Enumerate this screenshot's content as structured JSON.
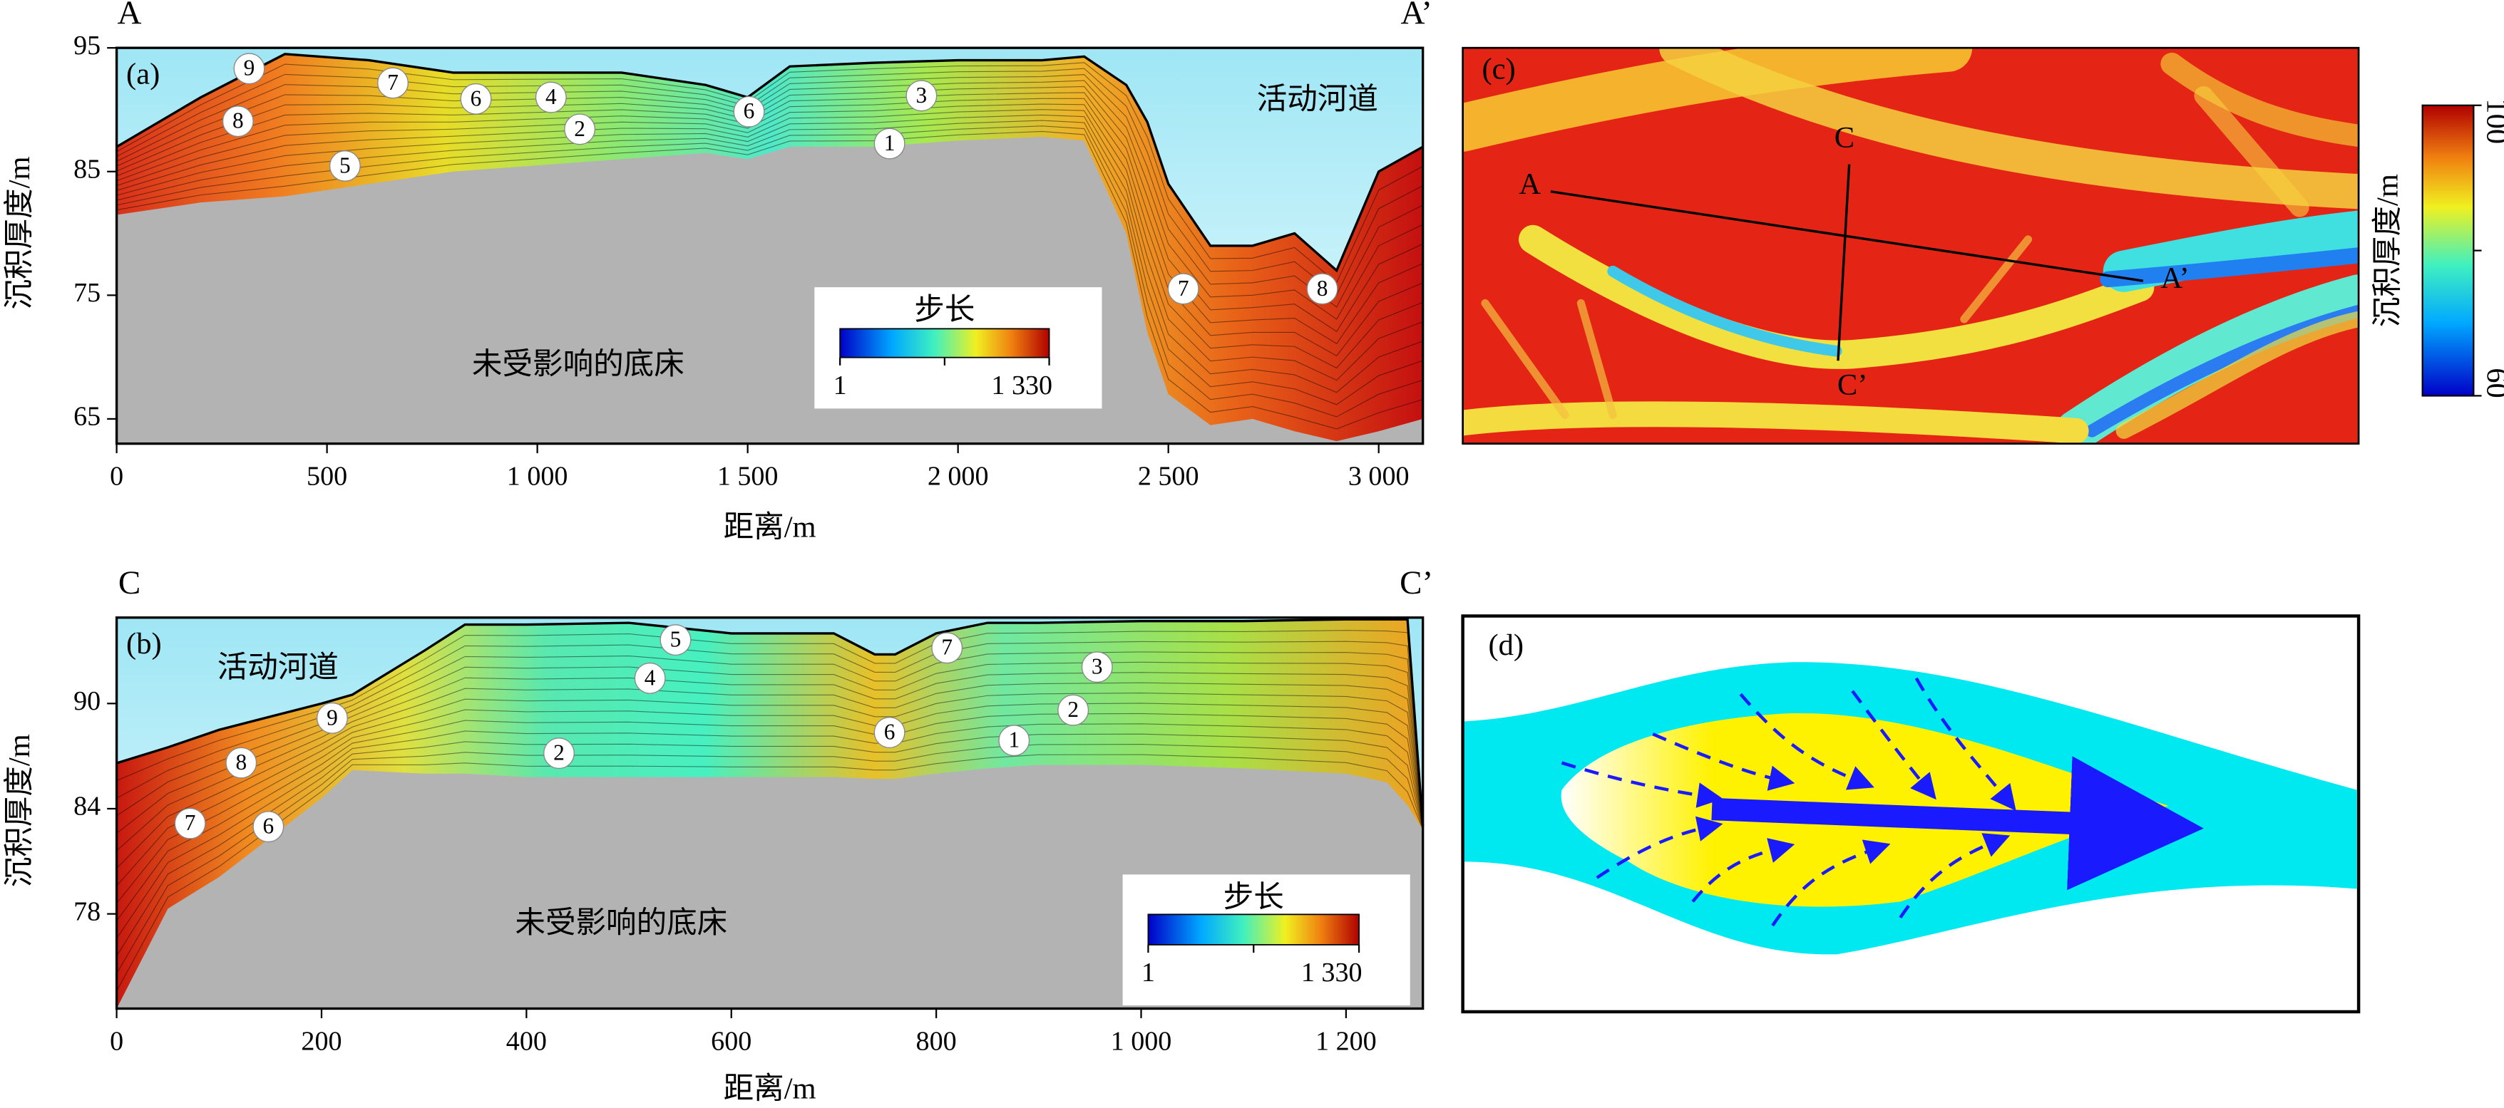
{
  "chart_data": [
    {
      "type": "cross-section",
      "panel_label": "(a)",
      "section_start": "A",
      "section_end": "A’",
      "xlabel": "距离/m",
      "ylabel": "沉积厚度/m",
      "channel_label": "活动河道",
      "xlim": [
        0,
        3105
      ],
      "ylim": [
        63,
        95
      ],
      "xticks": [
        0,
        500,
        {
          "value": 1000,
          "label": "1 000"
        },
        {
          "value": 1500,
          "label": "1 500"
        },
        {
          "value": 2000,
          "label": "2 000"
        },
        {
          "value": 2500,
          "label": "2 500"
        },
        {
          "value": 3000,
          "label": "3 000"
        }
      ],
      "yticks": [
        65,
        75,
        85,
        95
      ],
      "x": [
        0,
        200,
        400,
        600,
        800,
        1000,
        1200,
        1400,
        1500,
        1600,
        1800,
        2000,
        2200,
        2300,
        2400,
        2450,
        2500,
        2600,
        2700,
        2800,
        2900,
        3000,
        3105
      ],
      "series": [
        {
          "name": "未受影响的底床",
          "color": "#b3b3b3",
          "values": [
            81.5,
            82.5,
            83,
            84,
            85,
            85.5,
            86,
            86.5,
            86,
            87,
            87,
            87.5,
            87.8,
            87.5,
            80,
            72,
            67,
            64.5,
            65,
            64,
            63.2,
            64,
            65
          ]
        },
        {
          "color": "#f0a020",
          "values": [
            87,
            91,
            94.5,
            94,
            93,
            93,
            93,
            92,
            91,
            93.5,
            93.8,
            94,
            94,
            94.3,
            92,
            89,
            84,
            79,
            79,
            80,
            77,
            85,
            87
          ]
        }
      ],
      "legend": {
        "title": "步长",
        "ticks": [
          1,
          {
            "value": 1330,
            "label": "1 330"
          }
        ]
      },
      "annotations": [
        "9",
        "8",
        "7",
        "6",
        "4",
        "2",
        "5",
        "6",
        "3",
        "1",
        "7",
        "8"
      ]
    },
    {
      "type": "cross-section",
      "panel_label": "(b)",
      "section_start": "C",
      "section_end": "C’",
      "xlabel": "距离/m",
      "ylabel": "沉积厚度/m",
      "channel_label": "活动河道",
      "xlim": [
        0,
        1275
      ],
      "ylim": [
        72.6,
        94.9
      ],
      "xticks": [
        0,
        200,
        400,
        600,
        800,
        {
          "value": 1000,
          "label": "1 000"
        },
        {
          "value": 1200,
          "label": "1 200"
        }
      ],
      "yticks": [
        78,
        84,
        90
      ],
      "x": [
        0,
        50,
        100,
        200,
        230,
        300,
        340,
        400,
        500,
        600,
        700,
        740,
        760,
        800,
        850,
        900,
        1000,
        1100,
        1200,
        1240,
        1260,
        1275
      ],
      "series": [
        {
          "name": "未受影响的底床",
          "color": "#b3b3b3",
          "values": [
            72.6,
            78.3,
            80.1,
            84.6,
            86.2,
            86,
            86,
            85.8,
            85.8,
            85.8,
            85.8,
            85.7,
            85.7,
            86,
            86.3,
            86.5,
            86.5,
            86.3,
            86,
            85.5,
            84.2,
            82.8
          ]
        },
        {
          "color": "#e0c030",
          "values": [
            86.6,
            87.5,
            88.5,
            90,
            90.5,
            93,
            94.5,
            94.5,
            94.6,
            94,
            94,
            92.8,
            92.8,
            94,
            94.6,
            94.6,
            94.7,
            94.7,
            94.8,
            94.8,
            94.8,
            83
          ]
        }
      ],
      "legend": {
        "title": "步长",
        "ticks": [
          1,
          {
            "value": 1330,
            "label": "1 330"
          }
        ]
      },
      "annotations": [
        "5",
        "7",
        "4",
        "3",
        "9",
        "2",
        "8",
        "6",
        "1",
        "2",
        "7",
        "6"
      ]
    }
  ],
  "map": {
    "panel_label": "(c)",
    "line_a_start": "A",
    "line_a_end": "A’",
    "line_c_start": "C",
    "line_c_end": "C’",
    "colorbar": {
      "label": "沉积厚度/m",
      "ticks": [
        60,
        100
      ]
    }
  },
  "diagram": {
    "panel_label": "(d)"
  }
}
